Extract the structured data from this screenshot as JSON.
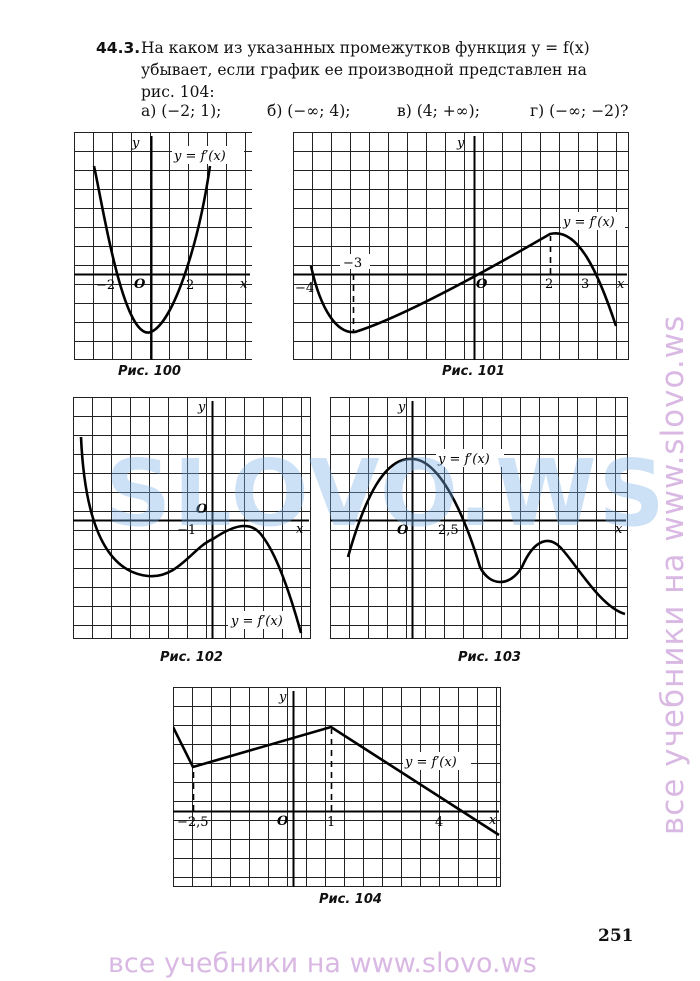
{
  "problem": {
    "number": "44.3.",
    "lines": [
      "На каком из указанных промежутков функция y = f(x)",
      "убывает, если график ее производной представлен на",
      "рис. 104:"
    ],
    "answers": [
      "а) (−2; 1);",
      "б) (−∞; 4);",
      "в) (4; +∞);",
      "г) (−∞; −2)?"
    ]
  },
  "figures": [
    {
      "caption": "Рис. 100",
      "func_label": "y = f′(x)",
      "x_axis": "x",
      "y_axis": "y",
      "origin": "O",
      "tick_labels": [
        "−2",
        "2"
      ]
    },
    {
      "caption": "Рис. 101",
      "func_label": "y = f′(x)",
      "x_axis": "x",
      "y_axis": "y",
      "origin": "O",
      "tick_labels": [
        "−4",
        "−3",
        "2",
        "3"
      ]
    },
    {
      "caption": "Рис. 102",
      "func_label": "y = f′(x)",
      "x_axis": "x",
      "y_axis": "y",
      "origin": "O",
      "tick_labels": [
        "−1"
      ]
    },
    {
      "caption": "Рис. 103",
      "func_label": "y = f′(x)",
      "x_axis": "x",
      "y_axis": "y",
      "origin": "O",
      "tick_labels": [
        "2,5"
      ]
    },
    {
      "caption": "Рис. 104",
      "func_label": "y = f′(x)",
      "x_axis": "x",
      "y_axis": "y",
      "origin": "O",
      "tick_labels": [
        "−2,5",
        "1",
        "4"
      ]
    }
  ],
  "page_number": "251",
  "watermarks": {
    "vertical": "все учебники на www.slovo.ws",
    "bottom": "все учебники на www.slovo.ws",
    "center": "SLOVO.WS"
  }
}
